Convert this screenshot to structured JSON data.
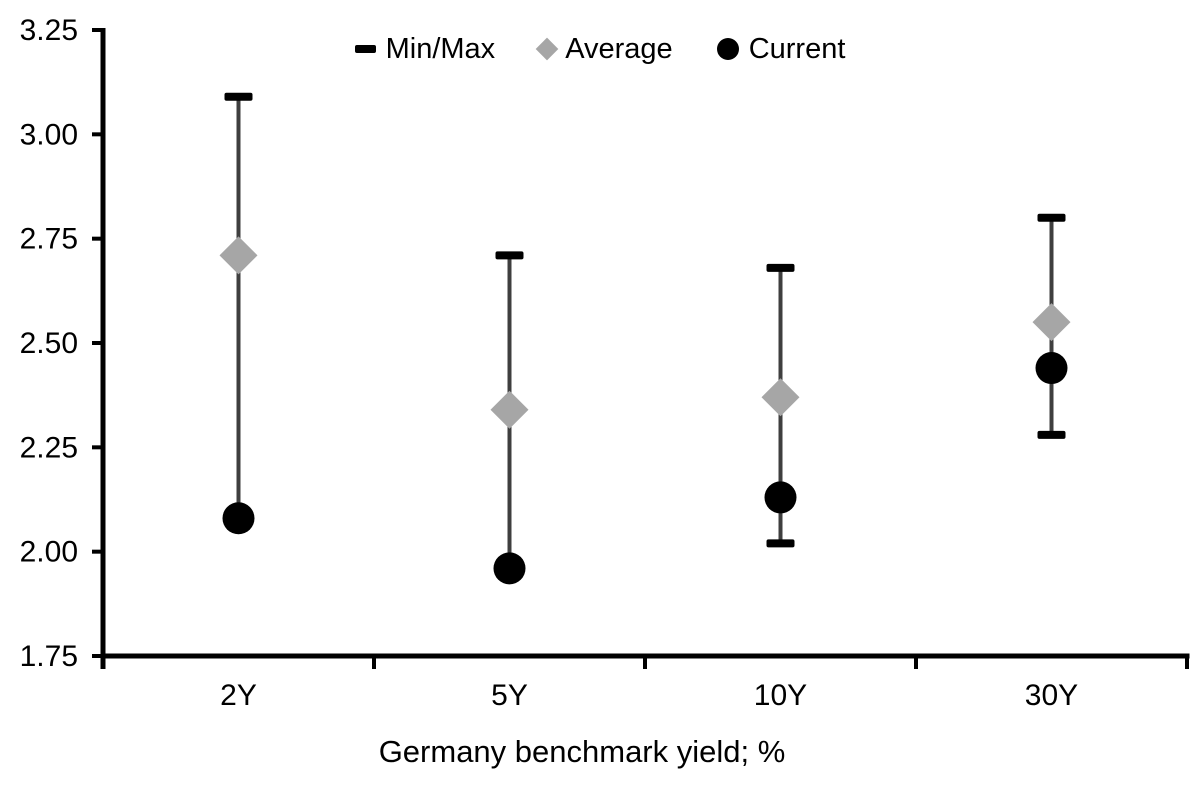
{
  "chart_data": {
    "type": "scatter",
    "subtype": "min-max-range-with-markers",
    "title": "",
    "xlabel": "Germany benchmark yield; %",
    "ylabel": "",
    "categories": [
      "2Y",
      "5Y",
      "10Y",
      "30Y"
    ],
    "series": [
      {
        "name": "Min/Max",
        "role": "range",
        "marker": "dash",
        "min": [
          2.08,
          1.96,
          2.02,
          2.28
        ],
        "max": [
          3.09,
          2.71,
          2.68,
          2.8
        ]
      },
      {
        "name": "Average",
        "role": "point",
        "marker": "diamond",
        "values": [
          2.71,
          2.34,
          2.37,
          2.55
        ]
      },
      {
        "name": "Current",
        "role": "point",
        "marker": "circle",
        "values": [
          2.08,
          1.96,
          2.13,
          2.44
        ]
      }
    ],
    "ylim": [
      1.75,
      3.25
    ],
    "yticks": [
      3.25,
      3.0,
      2.75,
      2.5,
      2.25,
      2.0,
      1.75
    ],
    "ytick_labels": [
      "3.25",
      "3.00",
      "2.75",
      "2.50",
      "2.25",
      "2.00",
      "1.75"
    ],
    "grid": false,
    "legend": {
      "position": "top-center",
      "items": [
        {
          "label": "Min/Max",
          "marker": "dash"
        },
        {
          "label": "Average",
          "marker": "diamond"
        },
        {
          "label": "Current",
          "marker": "circle"
        }
      ]
    },
    "colors": {
      "range_line": "#3f3f3f",
      "range_cap": "#000000",
      "average": "#a6a6a6",
      "current": "#000000",
      "axis": "#000000",
      "text": "#000000"
    }
  }
}
